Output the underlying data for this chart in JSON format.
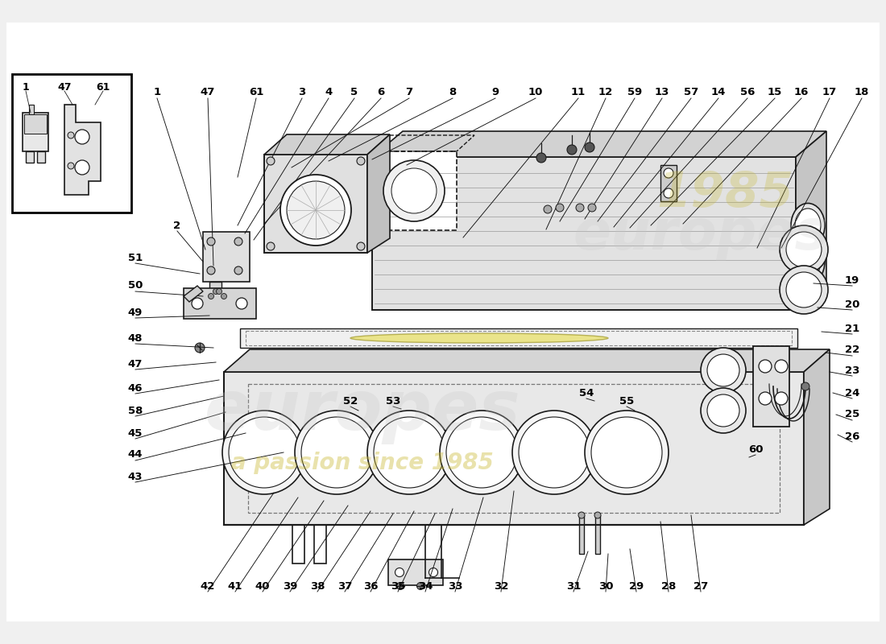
{
  "bg_color": "#f0f0f0",
  "lc": "#1a1a1a",
  "leaders": [
    [
      "1",
      195,
      115,
      255,
      310
    ],
    [
      "47",
      258,
      115,
      265,
      330
    ],
    [
      "61",
      318,
      115,
      295,
      220
    ],
    [
      "3",
      375,
      115,
      295,
      280
    ],
    [
      "4",
      408,
      115,
      304,
      290
    ],
    [
      "5",
      440,
      115,
      315,
      298
    ],
    [
      "6",
      473,
      115,
      328,
      278
    ],
    [
      "7",
      508,
      115,
      362,
      208
    ],
    [
      "8",
      562,
      115,
      408,
      200
    ],
    [
      "9",
      615,
      115,
      462,
      198
    ],
    [
      "10",
      665,
      115,
      505,
      205
    ],
    [
      "11",
      718,
      115,
      575,
      295
    ],
    [
      "12",
      752,
      115,
      678,
      285
    ],
    [
      "59",
      788,
      115,
      695,
      275
    ],
    [
      "13",
      822,
      115,
      726,
      272
    ],
    [
      "57",
      858,
      115,
      742,
      275
    ],
    [
      "14",
      892,
      115,
      762,
      282
    ],
    [
      "56",
      928,
      115,
      782,
      283
    ],
    [
      "15",
      962,
      115,
      808,
      280
    ],
    [
      "16",
      995,
      115,
      848,
      278
    ],
    [
      "17",
      1030,
      115,
      940,
      308
    ],
    [
      "18",
      1070,
      115,
      970,
      308
    ],
    [
      "51",
      168,
      320,
      248,
      340
    ],
    [
      "50",
      168,
      355,
      252,
      368
    ],
    [
      "49",
      168,
      388,
      260,
      392
    ],
    [
      "48",
      168,
      420,
      265,
      432
    ],
    [
      "47",
      168,
      452,
      268,
      450
    ],
    [
      "46",
      168,
      482,
      272,
      472
    ],
    [
      "58",
      168,
      510,
      278,
      492
    ],
    [
      "45",
      168,
      538,
      280,
      512
    ],
    [
      "44",
      168,
      565,
      305,
      538
    ],
    [
      "43",
      168,
      592,
      352,
      562
    ],
    [
      "52",
      435,
      498,
      445,
      510
    ],
    [
      "53",
      488,
      498,
      498,
      508
    ],
    [
      "54",
      728,
      488,
      738,
      498
    ],
    [
      "55",
      778,
      498,
      788,
      510
    ],
    [
      "2",
      220,
      280,
      252,
      325
    ],
    [
      "42",
      258,
      728,
      340,
      612
    ],
    [
      "41",
      292,
      728,
      370,
      618
    ],
    [
      "40",
      326,
      728,
      402,
      622
    ],
    [
      "39",
      360,
      728,
      432,
      628
    ],
    [
      "38",
      394,
      728,
      460,
      635
    ],
    [
      "37",
      428,
      728,
      488,
      638
    ],
    [
      "36",
      460,
      728,
      514,
      635
    ],
    [
      "35",
      494,
      728,
      540,
      638
    ],
    [
      "34",
      528,
      728,
      562,
      632
    ],
    [
      "33",
      565,
      728,
      600,
      618
    ],
    [
      "32",
      622,
      728,
      638,
      610
    ],
    [
      "31",
      712,
      728,
      730,
      685
    ],
    [
      "30",
      752,
      728,
      755,
      688
    ],
    [
      "29",
      790,
      728,
      782,
      682
    ],
    [
      "28",
      830,
      728,
      820,
      648
    ],
    [
      "27",
      870,
      728,
      858,
      640
    ],
    [
      "19",
      1058,
      348,
      1010,
      352
    ],
    [
      "20",
      1058,
      378,
      1015,
      382
    ],
    [
      "21",
      1058,
      408,
      1020,
      412
    ],
    [
      "22",
      1058,
      435,
      1025,
      438
    ],
    [
      "23",
      1058,
      460,
      1030,
      462
    ],
    [
      "24",
      1058,
      488,
      1034,
      488
    ],
    [
      "25",
      1058,
      515,
      1038,
      515
    ],
    [
      "26",
      1058,
      542,
      1040,
      540
    ],
    [
      "60",
      938,
      558,
      930,
      568
    ]
  ]
}
